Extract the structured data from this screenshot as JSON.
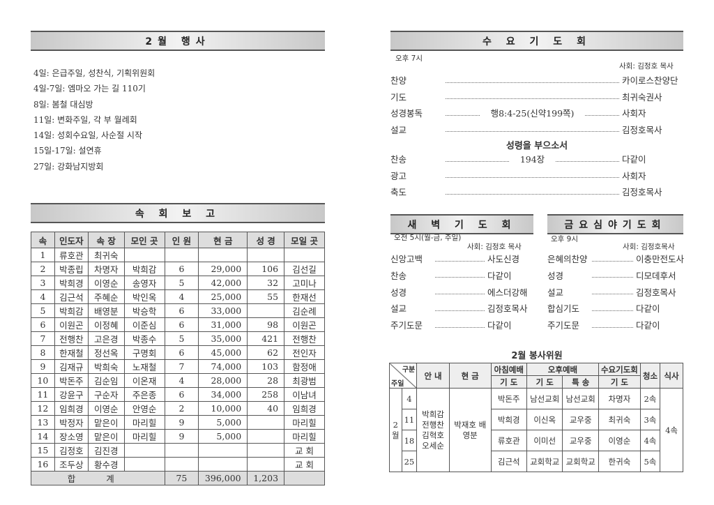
{
  "events": {
    "title": "2월 행사",
    "items": [
      "4일: 은급주일, 성찬식, 기획위원회",
      "4일-7일: 엠마오 가는 길 110기",
      "8일: 봄철 대심방",
      "11일: 변화주일, 각 부 월례회",
      "14일: 성회수요일, 사순절 시작",
      "15일-17일: 설연휴",
      "27일: 강화남지방회"
    ]
  },
  "report": {
    "title": "속 회 보 고",
    "headers": [
      "속",
      "인도자",
      "속 장",
      "모인 곳",
      "인 원",
      "현 금",
      "성 경",
      "모일 곳"
    ],
    "rows": [
      [
        "1",
        "류호관",
        "최귀숙",
        "",
        "",
        "",
        "",
        ""
      ],
      [
        "2",
        "박종립",
        "차명자",
        "박희감",
        "6",
        "29,000",
        "106",
        "김선길"
      ],
      [
        "3",
        "박희경",
        "이영순",
        "송영자",
        "5",
        "42,000",
        "32",
        "고미나"
      ],
      [
        "4",
        "김근석",
        "주혜순",
        "박인옥",
        "4",
        "25,000",
        "55",
        "한재선"
      ],
      [
        "5",
        "박희감",
        "배영분",
        "박승학",
        "6",
        "33,000",
        "",
        "김순례"
      ],
      [
        "6",
        "이원곤",
        "이정혜",
        "이준심",
        "6",
        "31,000",
        "98",
        "이원곤"
      ],
      [
        "7",
        "전행찬",
        "고은경",
        "박종수",
        "5",
        "35,000",
        "421",
        "전행찬"
      ],
      [
        "8",
        "한재철",
        "정선옥",
        "구명회",
        "6",
        "45,000",
        "62",
        "전인자"
      ],
      [
        "9",
        "김재규",
        "박희숙",
        "노재철",
        "7",
        "74,000",
        "103",
        "함정애"
      ],
      [
        "10",
        "박돈주",
        "김순임",
        "이온재",
        "4",
        "28,000",
        "28",
        "최광범"
      ],
      [
        "11",
        "강윤구",
        "구순자",
        "주은종",
        "6",
        "34,000",
        "258",
        "이남녀"
      ],
      [
        "12",
        "임희경",
        "이영순",
        "안영순",
        "2",
        "10,000",
        "40",
        "임희경"
      ],
      [
        "13",
        "박정자",
        "맡은이",
        "마리힐",
        "9",
        "5,000",
        "",
        "마리힐"
      ],
      [
        "14",
        "장소영",
        "맡은이",
        "마리힐",
        "9",
        "5,000",
        "",
        "마리힐"
      ],
      [
        "15",
        "김정호",
        "김진경",
        "",
        "",
        "",
        "",
        "교 회"
      ],
      [
        "16",
        "조두상",
        "황수경",
        "",
        "",
        "",
        "",
        "교 회"
      ]
    ],
    "total": {
      "label": "합 계",
      "people": "75",
      "money": "396,000",
      "bible": "1,203"
    }
  },
  "wed": {
    "title": "수 요 기 도 회",
    "time": "오후 7시",
    "host": "사회: 김정호 목사",
    "sermon_title": "성령을 부으소서",
    "items1": [
      {
        "l": "찬양",
        "m": "",
        "r": "카이로스찬양단"
      },
      {
        "l": "기도",
        "m": "",
        "r": "최귀숙권사"
      },
      {
        "l": "성경봉독",
        "m": "행8:4-25(신약199쪽)",
        "r": "사회자"
      },
      {
        "l": "설교",
        "m": "",
        "r": "김정호목사"
      }
    ],
    "items2": [
      {
        "l": "찬송",
        "m": "194장",
        "r": "다같이"
      },
      {
        "l": "광고",
        "m": "",
        "r": "사회자"
      },
      {
        "l": "축도",
        "m": "",
        "r": "김정호목사"
      }
    ]
  },
  "dawn": {
    "title": "새 벽 기 도 회",
    "time": "오전 5시(월-금, 주일)",
    "host": "사회: 김정호 목사",
    "items": [
      {
        "l": "신앙고백",
        "r": "사도신경"
      },
      {
        "l": "찬송",
        "r": "다같이"
      },
      {
        "l": "성경",
        "r": "에스더강해"
      },
      {
        "l": "설교",
        "r": "김정호목사"
      },
      {
        "l": "주기도문",
        "r": "다같이"
      }
    ]
  },
  "fri": {
    "title": "금요심야기도회",
    "time": "오후 9시",
    "host": "사회: 김정호목사",
    "items": [
      {
        "l": "은혜의찬양",
        "r": "이충만전도사"
      },
      {
        "l": "성경",
        "r": "디모데후서"
      },
      {
        "l": "설교",
        "r": "김정호목사"
      },
      {
        "l": "합심기도",
        "r": "다같이"
      },
      {
        "l": "주기도문",
        "r": "다같이"
      }
    ]
  },
  "service": {
    "title": "2월 봉사위원",
    "h_gubun": "구분",
    "h_juil": "주일",
    "h_guide": "안 내",
    "h_money": "현 금",
    "h_morning": "아침예배",
    "h_afternoon": "오후예배",
    "h_wed": "수요기도회",
    "h_clean": "청소",
    "h_meal": "식사",
    "h_prayer": "기 도",
    "h_special": "특 송",
    "month": "2 월",
    "guides": "박희감 전행찬 김혁호 오세순",
    "money": "박재호 배영분",
    "meal": "4속",
    "rows": [
      [
        "4",
        "박돈주",
        "남선교회",
        "남선교회",
        "차명자",
        "2속"
      ],
      [
        "11",
        "박희경",
        "이신옥",
        "교우중",
        "최귀숙",
        "3속"
      ],
      [
        "18",
        "류호관",
        "이미선",
        "교우중",
        "이영순",
        "4속"
      ],
      [
        "25",
        "김근석",
        "교회학교",
        "교회학교",
        "한귀숙",
        "5속"
      ]
    ]
  }
}
